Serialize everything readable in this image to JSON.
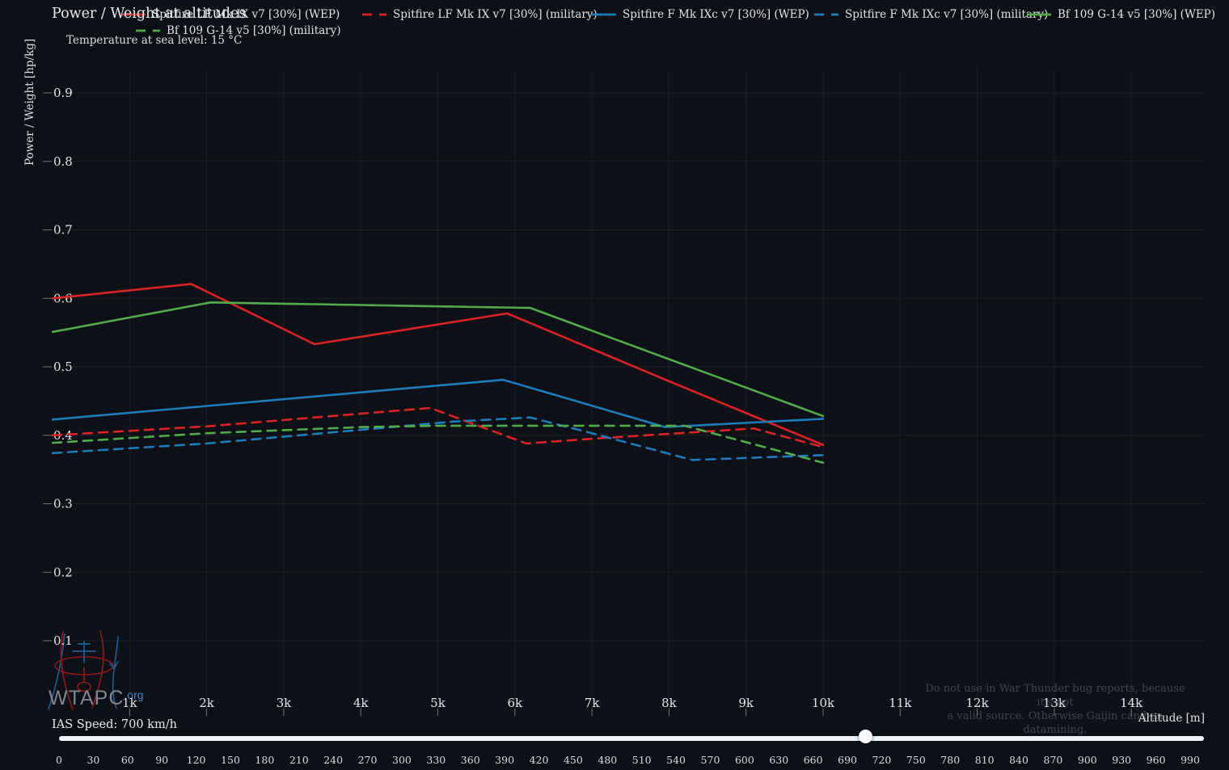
{
  "header": {
    "title": "Power / Weight at altitudes",
    "subtitle": "Temperature at sea level: 15 °C"
  },
  "legend": {
    "items": [
      {
        "label": "Spitfire LF Mk IX v7 [30%] (WEP)",
        "color": "#dc2327",
        "dashed": false
      },
      {
        "label": "Spitfire LF Mk IX v7 [30%] (military)",
        "color": "#dc2327",
        "dashed": true
      },
      {
        "label": "Spitfire F Mk IXc v7 [30%] (WEP)",
        "color": "#1e7cba",
        "dashed": false
      },
      {
        "label": "Spitfire F Mk IXc v7 [30%] (military)",
        "color": "#1e7cba",
        "dashed": true
      },
      {
        "label": "Bf 109 G-14 v5 [30%] (WEP)",
        "color": "#53ac4b",
        "dashed": false
      },
      {
        "label": "Bf 109 G-14 v5 [30%] (military)",
        "color": "#53ac4b",
        "dashed": true
      }
    ]
  },
  "chart_data": {
    "type": "line",
    "title": "Power / Weight at altitudes",
    "xlabel": "Altitude [m]",
    "ylabel": "Power / Weight [hp/kg]",
    "xlim": [
      0,
      14950
    ],
    "ylim": [
      0.0,
      0.935
    ],
    "grid": true,
    "legend_position": "top",
    "x_ticks": [
      {
        "value": 1000,
        "label": "1k"
      },
      {
        "value": 2000,
        "label": "2k"
      },
      {
        "value": 3000,
        "label": "3k"
      },
      {
        "value": 4000,
        "label": "4k"
      },
      {
        "value": 5000,
        "label": "5k"
      },
      {
        "value": 6000,
        "label": "6k"
      },
      {
        "value": 7000,
        "label": "7k"
      },
      {
        "value": 8000,
        "label": "8k"
      },
      {
        "value": 9000,
        "label": "9k"
      },
      {
        "value": 10000,
        "label": "10k"
      },
      {
        "value": 11000,
        "label": "11k"
      },
      {
        "value": 12000,
        "label": "12k"
      },
      {
        "value": 13000,
        "label": "13k"
      },
      {
        "value": 14000,
        "label": "14k"
      }
    ],
    "y_ticks": [
      {
        "value": 0.1,
        "label": "0.1"
      },
      {
        "value": 0.2,
        "label": "0.2"
      },
      {
        "value": 0.3,
        "label": "0.3"
      },
      {
        "value": 0.4,
        "label": "0.4"
      },
      {
        "value": 0.5,
        "label": "0.5"
      },
      {
        "value": 0.6,
        "label": "0.6"
      },
      {
        "value": 0.7,
        "label": "0.7"
      },
      {
        "value": 0.8,
        "label": "0.8"
      },
      {
        "value": 0.9,
        "label": "0.9"
      }
    ],
    "series": [
      {
        "name": "Spitfire LF Mk IX v7 [30%] (WEP)",
        "color": "#dc2327",
        "style": "solid",
        "points": [
          [
            0,
            0.6
          ],
          [
            1800,
            0.621
          ],
          [
            3400,
            0.533
          ],
          [
            5900,
            0.578
          ],
          [
            8000,
            0.479
          ],
          [
            10000,
            0.386
          ]
        ]
      },
      {
        "name": "Spitfire LF Mk IX v7 [30%] (military)",
        "color": "#dc2327",
        "style": "dashed",
        "points": [
          [
            0,
            0.4
          ],
          [
            2000,
            0.413
          ],
          [
            3500,
            0.427
          ],
          [
            4900,
            0.44
          ],
          [
            6150,
            0.388
          ],
          [
            7000,
            0.395
          ],
          [
            9100,
            0.41
          ],
          [
            10000,
            0.383
          ]
        ]
      },
      {
        "name": "Spitfire F Mk IXc v7 [30%] (WEP)",
        "color": "#1e7cba",
        "style": "solid",
        "points": [
          [
            0,
            0.423
          ],
          [
            5850,
            0.481
          ],
          [
            7950,
            0.412
          ],
          [
            10000,
            0.424
          ]
        ]
      },
      {
        "name": "Spitfire F Mk IXc v7 [30%] (military)",
        "color": "#1e7cba",
        "style": "dashed",
        "points": [
          [
            0,
            0.374
          ],
          [
            2000,
            0.388
          ],
          [
            4000,
            0.408
          ],
          [
            5200,
            0.42
          ],
          [
            6200,
            0.426
          ],
          [
            7000,
            0.403
          ],
          [
            8300,
            0.364
          ],
          [
            10000,
            0.371
          ]
        ]
      },
      {
        "name": "Bf 109 G-14 v5 [30%] (WEP)",
        "color": "#53ac4b",
        "style": "solid",
        "points": [
          [
            0,
            0.551
          ],
          [
            2050,
            0.594
          ],
          [
            6200,
            0.586
          ],
          [
            10000,
            0.428
          ]
        ]
      },
      {
        "name": "Bf 109 G-14 v5 [30%] (military)",
        "color": "#53ac4b",
        "style": "dashed",
        "points": [
          [
            0,
            0.389
          ],
          [
            2000,
            0.403
          ],
          [
            4000,
            0.412
          ],
          [
            5000,
            0.414
          ],
          [
            8200,
            0.414
          ],
          [
            10000,
            0.36
          ]
        ]
      }
    ]
  },
  "watermark": {
    "brand": "WTAPC",
    "suffix": ".org"
  },
  "disclaimer": {
    "line1": "Do not use in War Thunder bug reports, because it's not",
    "line2": "a valid source. Otherwise Gaijin can ban datamining."
  },
  "slider": {
    "label": "IAS Speed: 700 km/h",
    "value": 700,
    "min": 0,
    "max": 990,
    "step": 30,
    "ticks": [
      "0",
      "30",
      "60",
      "90",
      "120",
      "150",
      "180",
      "210",
      "240",
      "270",
      "300",
      "330",
      "360",
      "390",
      "420",
      "450",
      "480",
      "510",
      "540",
      "570",
      "600",
      "630",
      "660",
      "690",
      "720",
      "750",
      "780",
      "810",
      "840",
      "870",
      "900",
      "930",
      "960",
      "990"
    ]
  }
}
